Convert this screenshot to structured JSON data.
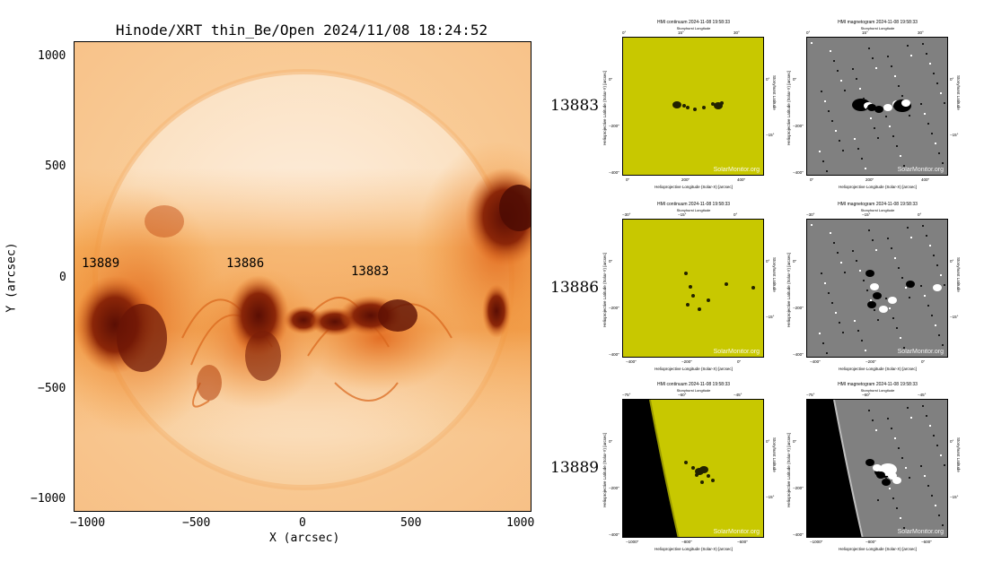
{
  "main": {
    "title": "Hinode/XRT thin_Be/Open 2024/11/08 18:24:52",
    "xlabel": "X (arcsec)",
    "ylabel": "Y (arcsec)",
    "xticks": [
      "−1000",
      "−500",
      "0",
      "500",
      "1000"
    ],
    "yticks": [
      "1000",
      "500",
      "0",
      "−500",
      "−1000"
    ],
    "regions": [
      {
        "label": "13889"
      },
      {
        "label": "13886"
      },
      {
        "label": "13883"
      }
    ],
    "colors": {
      "disk": "#fbe3c4",
      "corona": "#f49a3a",
      "active": "#7a1a08"
    }
  },
  "rows": [
    {
      "label": "13883"
    },
    {
      "label": "13886"
    },
    {
      "label": "13889"
    }
  ],
  "panels": {
    "continuum_title": "HMI continuum 2024-11-08 19:58:33",
    "magnetogram_title": "HMI magnetogram 2024-11-08 19:58:33",
    "stonyhurst": "Stonyhurst Longitude",
    "stonyhurst_lat": "Stonyhurst Latitude",
    "xlabel": "Helioprojective Longitude (Solar-X) [arcsec]",
    "ylabel": "Helioprojective Latitude (Solar-Y) [arcsec]",
    "watermark": "SolarMonitor.org",
    "row_ticks": [
      {
        "x": [
          "0″",
          "200″",
          "400″"
        ],
        "y": [
          "0″",
          "−200″",
          "−400″"
        ],
        "top": [
          "0°",
          "15°",
          "30°"
        ],
        "right": [
          "0°",
          "−15°"
        ]
      },
      {
        "x": [
          "−400″",
          "−200″",
          "0″"
        ],
        "y": [
          "0″",
          "−200″",
          "−400″"
        ],
        "top": [
          "−30°",
          "−15°",
          "0°"
        ],
        "right": [
          "0°",
          "−15°"
        ]
      },
      {
        "x": [
          "−1000″",
          "−800″",
          "−600″"
        ],
        "y": [
          "0″",
          "−200″",
          "−400″"
        ],
        "top": [
          "−75°",
          "−60°",
          "−45°"
        ],
        "right": [
          "0°",
          "−15°"
        ]
      }
    ],
    "colors": {
      "continuum": "#c8c800",
      "magnetogram": "#808080",
      "space": "#000000"
    }
  }
}
